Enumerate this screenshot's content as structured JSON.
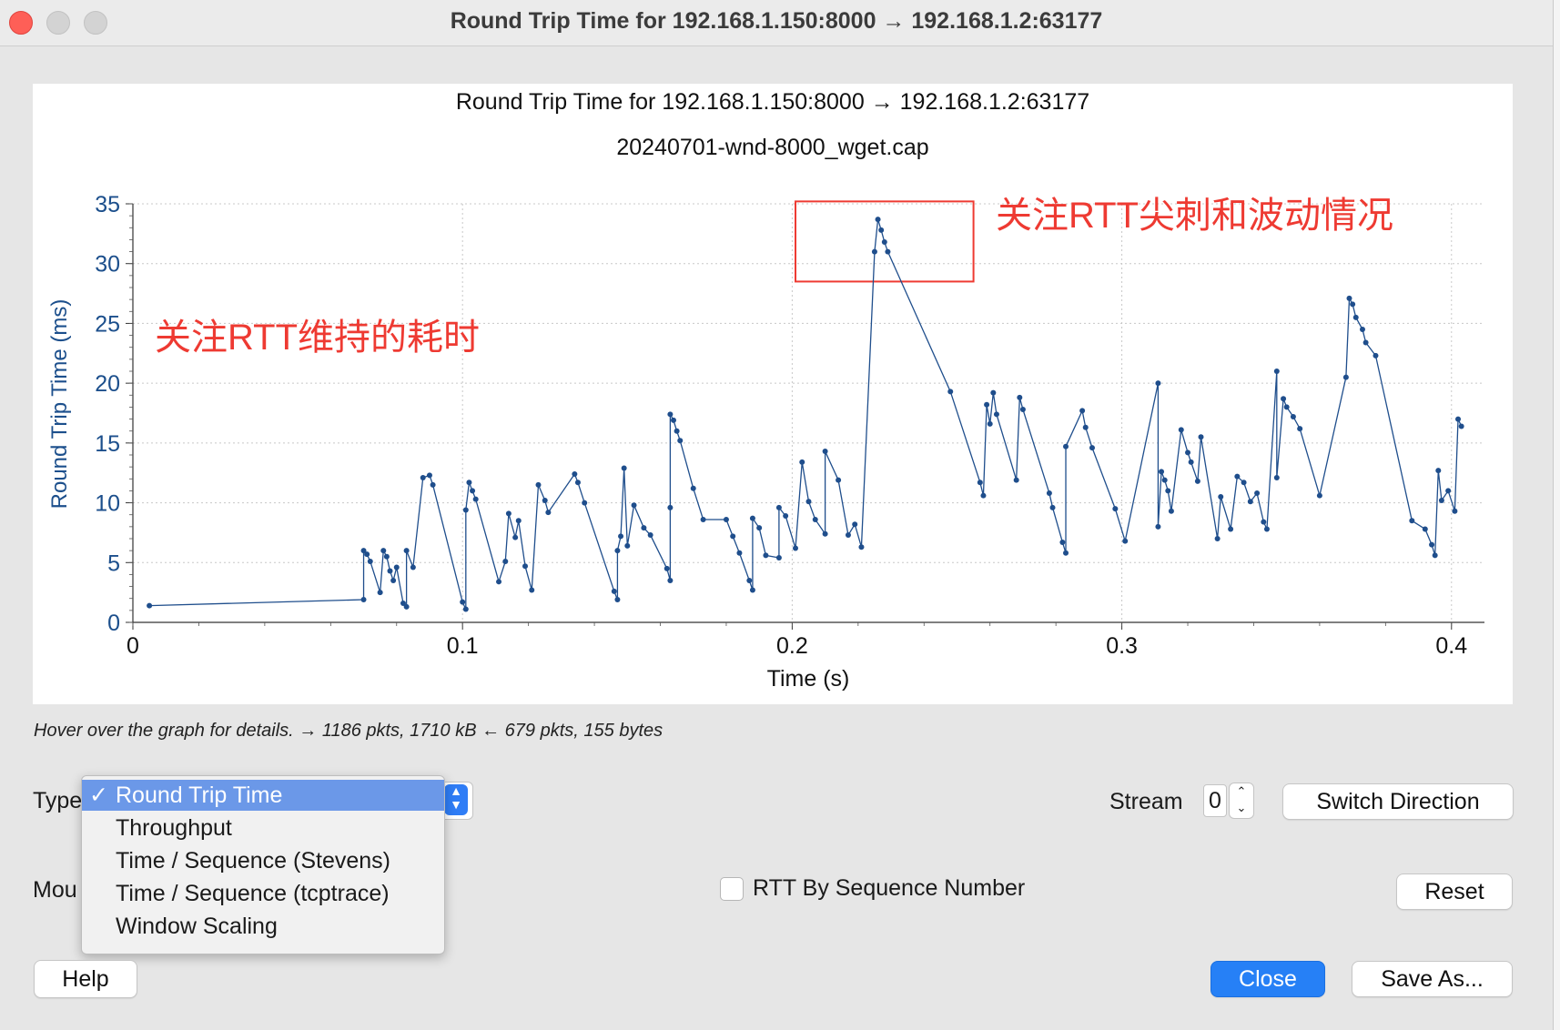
{
  "window": {
    "title": "Round Trip Time for 192.168.1.150:8000 → 192.168.1.2:63177"
  },
  "plot": {
    "title": "Round Trip Time for 192.168.1.150:8000 → 192.168.1.2:63177",
    "subtitle": "20240701-wnd-8000_wget.cap",
    "annotation_duration": "关注RTT维持的耗时",
    "annotation_spike": "关注RTT尖刺和波动情况"
  },
  "chart_data": {
    "type": "line",
    "title": "Round Trip Time for 192.168.1.150:8000 → 192.168.1.2:63177",
    "subtitle": "20240701-wnd-8000_wget.cap",
    "xlabel": "Time (s)",
    "ylabel": "Round Trip Time (ms)",
    "xlim": [
      0,
      0.41
    ],
    "ylim": [
      0,
      35
    ],
    "x_ticks": [
      "0",
      "0.1",
      "0.2",
      "0.3",
      "0.4"
    ],
    "y_ticks": [
      "0",
      "5",
      "10",
      "15",
      "20",
      "25",
      "30",
      "35"
    ],
    "grid": true,
    "series": [
      {
        "color": "#1f4e8c",
        "points": [
          [
            0.005,
            1.4
          ],
          [
            0.07,
            1.9
          ],
          [
            0.07,
            6.0
          ],
          [
            0.071,
            5.7
          ],
          [
            0.072,
            5.1
          ],
          [
            0.075,
            2.5
          ],
          [
            0.076,
            6.0
          ],
          [
            0.077,
            5.5
          ],
          [
            0.078,
            4.3
          ],
          [
            0.079,
            3.5
          ],
          [
            0.08,
            4.6
          ],
          [
            0.082,
            1.6
          ],
          [
            0.083,
            1.3
          ],
          [
            0.083,
            6.0
          ],
          [
            0.085,
            4.6
          ],
          [
            0.088,
            12.1
          ],
          [
            0.09,
            12.3
          ],
          [
            0.091,
            11.5
          ],
          [
            0.1,
            1.7
          ],
          [
            0.101,
            1.1
          ],
          [
            0.101,
            9.4
          ],
          [
            0.102,
            11.7
          ],
          [
            0.103,
            11.0
          ],
          [
            0.104,
            10.3
          ],
          [
            0.111,
            3.4
          ],
          [
            0.113,
            5.1
          ],
          [
            0.114,
            9.1
          ],
          [
            0.116,
            7.1
          ],
          [
            0.117,
            8.5
          ],
          [
            0.119,
            4.7
          ],
          [
            0.121,
            2.7
          ],
          [
            0.123,
            11.5
          ],
          [
            0.125,
            10.2
          ],
          [
            0.126,
            9.2
          ],
          [
            0.134,
            12.4
          ],
          [
            0.135,
            11.7
          ],
          [
            0.137,
            10.0
          ],
          [
            0.146,
            2.6
          ],
          [
            0.147,
            1.9
          ],
          [
            0.147,
            6.0
          ],
          [
            0.148,
            7.2
          ],
          [
            0.149,
            12.9
          ],
          [
            0.15,
            6.4
          ],
          [
            0.152,
            9.8
          ],
          [
            0.155,
            7.9
          ],
          [
            0.157,
            7.3
          ],
          [
            0.162,
            4.5
          ],
          [
            0.163,
            3.5
          ],
          [
            0.163,
            9.6
          ],
          [
            0.163,
            17.4
          ],
          [
            0.164,
            16.9
          ],
          [
            0.165,
            16.0
          ],
          [
            0.166,
            15.2
          ],
          [
            0.17,
            11.2
          ],
          [
            0.173,
            8.6
          ],
          [
            0.18,
            8.6
          ],
          [
            0.182,
            7.2
          ],
          [
            0.184,
            5.8
          ],
          [
            0.187,
            3.5
          ],
          [
            0.188,
            2.7
          ],
          [
            0.188,
            8.7
          ],
          [
            0.19,
            7.9
          ],
          [
            0.192,
            5.6
          ],
          [
            0.196,
            5.4
          ],
          [
            0.196,
            9.6
          ],
          [
            0.198,
            8.9
          ],
          [
            0.201,
            6.2
          ],
          [
            0.203,
            13.4
          ],
          [
            0.205,
            10.1
          ],
          [
            0.207,
            8.6
          ],
          [
            0.21,
            7.4
          ],
          [
            0.21,
            14.3
          ],
          [
            0.214,
            11.9
          ],
          [
            0.217,
            7.3
          ],
          [
            0.219,
            8.2
          ],
          [
            0.221,
            6.3
          ],
          [
            0.225,
            31.0
          ],
          [
            0.226,
            33.7
          ],
          [
            0.227,
            32.8
          ],
          [
            0.228,
            31.8
          ],
          [
            0.229,
            31.0
          ],
          [
            0.248,
            19.3
          ],
          [
            0.257,
            11.7
          ],
          [
            0.258,
            10.6
          ],
          [
            0.259,
            18.2
          ],
          [
            0.26,
            16.6
          ],
          [
            0.261,
            19.2
          ],
          [
            0.262,
            17.4
          ],
          [
            0.268,
            11.9
          ],
          [
            0.269,
            18.8
          ],
          [
            0.27,
            17.8
          ],
          [
            0.278,
            10.8
          ],
          [
            0.279,
            9.6
          ],
          [
            0.282,
            6.7
          ],
          [
            0.283,
            5.8
          ],
          [
            0.283,
            14.7
          ],
          [
            0.288,
            17.7
          ],
          [
            0.289,
            16.3
          ],
          [
            0.291,
            14.6
          ],
          [
            0.298,
            9.5
          ],
          [
            0.301,
            6.8
          ],
          [
            0.311,
            20.0
          ],
          [
            0.311,
            8.0
          ],
          [
            0.312,
            12.6
          ],
          [
            0.313,
            11.9
          ],
          [
            0.314,
            11.0
          ],
          [
            0.315,
            9.3
          ],
          [
            0.318,
            16.1
          ],
          [
            0.32,
            14.2
          ],
          [
            0.321,
            13.4
          ],
          [
            0.323,
            11.8
          ],
          [
            0.324,
            15.5
          ],
          [
            0.329,
            7.0
          ],
          [
            0.33,
            10.5
          ],
          [
            0.333,
            7.8
          ],
          [
            0.335,
            12.2
          ],
          [
            0.337,
            11.7
          ],
          [
            0.339,
            10.1
          ],
          [
            0.341,
            10.8
          ],
          [
            0.343,
            8.4
          ],
          [
            0.344,
            7.8
          ],
          [
            0.347,
            21.0
          ],
          [
            0.347,
            12.1
          ],
          [
            0.349,
            18.7
          ],
          [
            0.35,
            18.0
          ],
          [
            0.352,
            17.2
          ],
          [
            0.354,
            16.2
          ],
          [
            0.36,
            10.6
          ],
          [
            0.368,
            20.5
          ],
          [
            0.369,
            27.1
          ],
          [
            0.37,
            26.6
          ],
          [
            0.371,
            25.5
          ],
          [
            0.373,
            24.5
          ],
          [
            0.374,
            23.4
          ],
          [
            0.377,
            22.3
          ],
          [
            0.388,
            8.5
          ],
          [
            0.392,
            7.8
          ],
          [
            0.394,
            6.5
          ],
          [
            0.395,
            5.6
          ],
          [
            0.396,
            12.7
          ],
          [
            0.397,
            10.2
          ],
          [
            0.399,
            11.0
          ],
          [
            0.401,
            9.3
          ],
          [
            0.402,
            17.0
          ],
          [
            0.403,
            16.4
          ]
        ]
      }
    ],
    "annotation_boxes": [
      {
        "label": "关注RTT尖刺和波动情况",
        "x_range": [
          0.201,
          0.255
        ],
        "y_range": [
          28.5,
          35.2
        ]
      }
    ]
  },
  "status": {
    "hover_text": "Hover over the graph for details. → 1186 pkts, 1710 kB ← 679 pkts, 155 bytes"
  },
  "controls": {
    "type_label": "Type",
    "mouse_label": "Mou",
    "type_options": [
      {
        "label": "Round Trip Time",
        "selected": true,
        "check": "✓"
      },
      {
        "label": "Throughput",
        "selected": false
      },
      {
        "label": "Time / Sequence (Stevens)",
        "selected": false
      },
      {
        "label": "Time / Sequence (tcptrace)",
        "selected": false
      },
      {
        "label": "Window Scaling",
        "selected": false
      }
    ],
    "stream_label": "Stream",
    "stream_value": "0",
    "switch_direction": "Switch Direction",
    "rtt_by_seq_label": "RTT By Sequence Number",
    "rtt_by_seq_checked": false,
    "reset": "Reset",
    "help": "Help",
    "close": "Close",
    "save_as": "Save As..."
  }
}
